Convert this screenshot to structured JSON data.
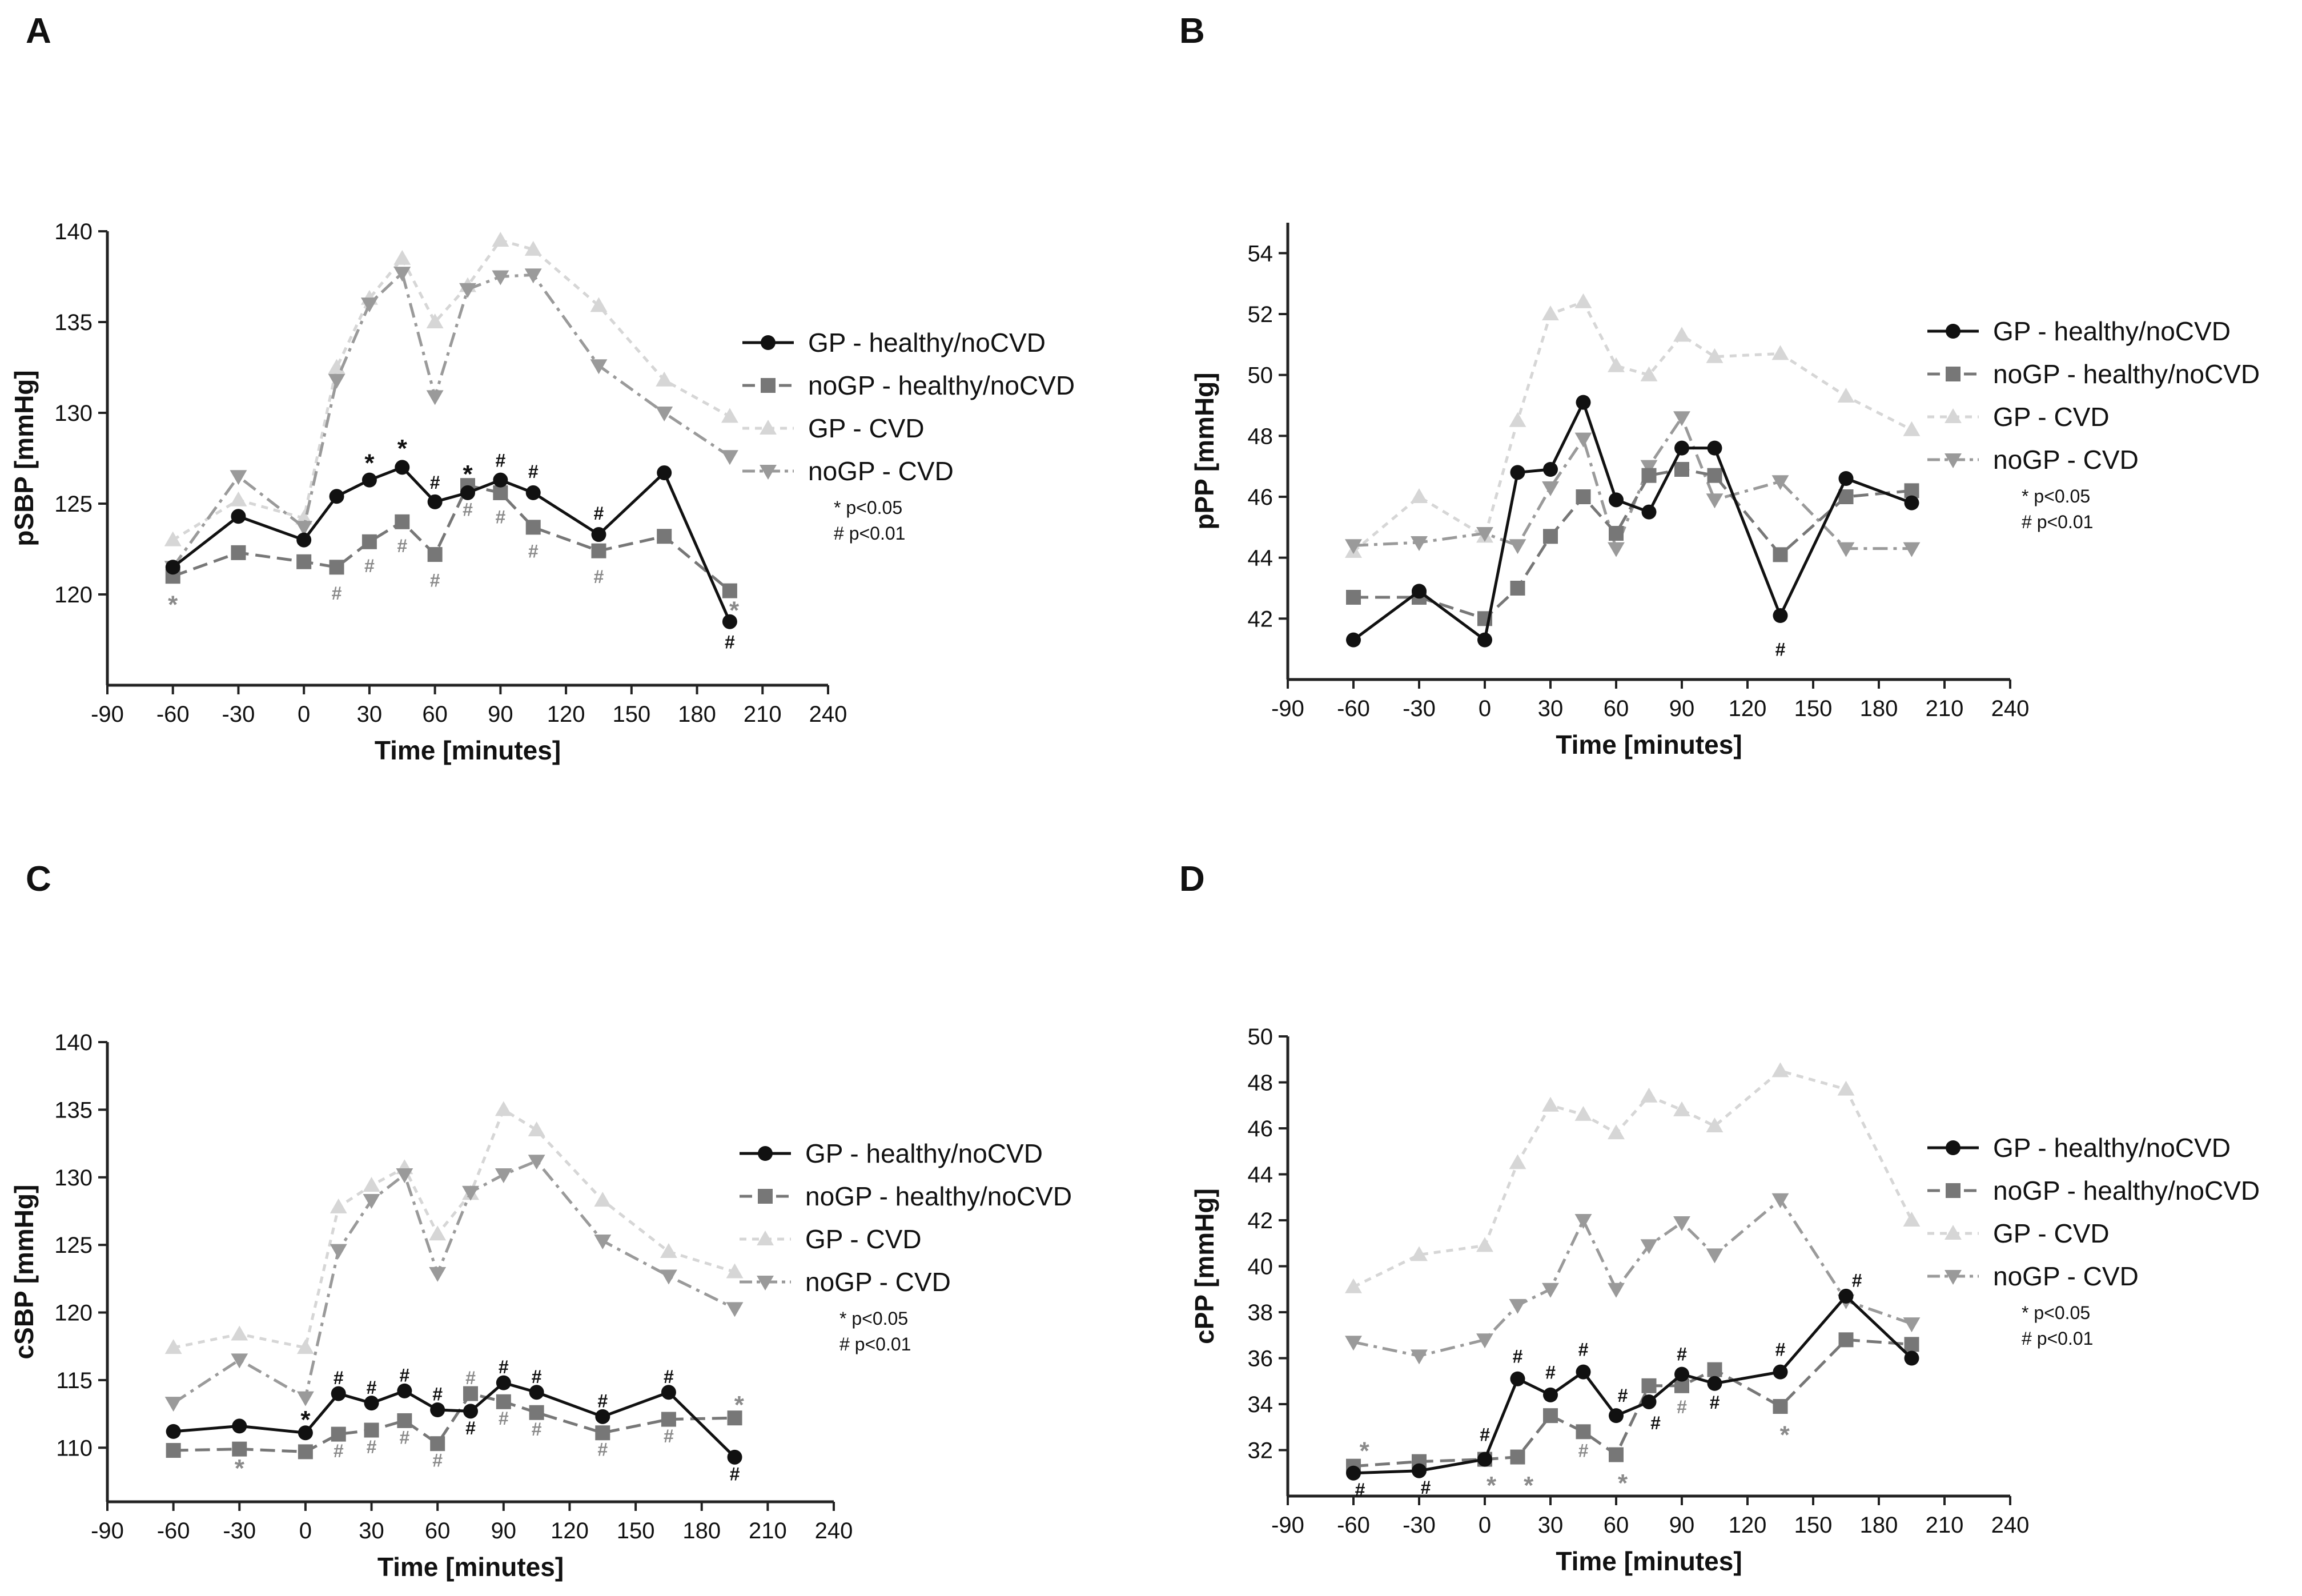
{
  "figure": {
    "x_axis_label": "Time [minutes]",
    "x_ticks": [
      -90,
      -60,
      -30,
      0,
      30,
      60,
      90,
      120,
      150,
      180,
      210,
      240
    ],
    "x_range": [
      -90,
      240
    ],
    "legend_labels": [
      "GP - healthy/noCVD",
      "noGP - healthy/noCVD",
      "GP - CVD",
      "noGP - CVD"
    ],
    "significance_notes": [
      "* p<0.05",
      "# p<0.01"
    ],
    "series_colors": {
      "gp_healthy": "#111111",
      "nogp_healthy": "#777777",
      "gp_cvd": "#d6d6d6",
      "nogp_cvd": "#9a9a9a"
    }
  },
  "chart_data": [
    {
      "panel": "A",
      "type": "line",
      "ylabel": "pSBP [mmHg]",
      "xlabel": "Time [minutes]",
      "ylim": [
        115,
        140
      ],
      "yticks": [
        120,
        125,
        130,
        135,
        140
      ],
      "series": [
        {
          "name": "GP - healthy/noCVD",
          "x": [
            -60,
            -30,
            0,
            15,
            30,
            45,
            60,
            75,
            90,
            105,
            135,
            165,
            195
          ],
          "values": [
            121.5,
            124.3,
            123.0,
            125.4,
            126.3,
            127.0,
            125.1,
            125.6,
            126.3,
            125.6,
            123.3,
            126.7,
            118.5
          ]
        },
        {
          "name": "noGP - healthy/noCVD",
          "x": [
            -60,
            -30,
            0,
            15,
            30,
            45,
            60,
            75,
            90,
            105,
            135,
            165,
            195
          ],
          "values": [
            121.0,
            122.3,
            121.8,
            121.5,
            122.9,
            124.0,
            122.2,
            126.0,
            125.6,
            123.7,
            122.4,
            123.2,
            120.2
          ]
        },
        {
          "name": "GP - CVD",
          "x": [
            -60,
            -30,
            0,
            15,
            30,
            45,
            60,
            75,
            90,
            105,
            135,
            165,
            195
          ],
          "values": [
            123.0,
            125.2,
            124.2,
            132.5,
            136.3,
            138.5,
            135.0,
            137.0,
            139.5,
            139.0,
            135.9,
            131.8,
            129.8
          ]
        },
        {
          "name": "noGP - CVD",
          "x": [
            -60,
            -30,
            0,
            15,
            30,
            45,
            60,
            75,
            90,
            105,
            135,
            165,
            195
          ],
          "values": [
            121.5,
            126.5,
            123.7,
            131.8,
            136.0,
            137.7,
            130.9,
            136.8,
            137.5,
            137.6,
            132.6,
            130.0,
            127.6
          ]
        }
      ],
      "annotations": [
        {
          "text": "*",
          "x": 30,
          "y": 127.4,
          "tone": "dark"
        },
        {
          "text": "*",
          "x": 45,
          "y": 128.2,
          "tone": "dark"
        },
        {
          "text": "#",
          "x": 60,
          "y": 126.2,
          "tone": "dark"
        },
        {
          "text": "*",
          "x": 75,
          "y": 126.8,
          "tone": "dark"
        },
        {
          "text": "#",
          "x": 90,
          "y": 127.4,
          "tone": "dark"
        },
        {
          "text": "#",
          "x": 105,
          "y": 126.8,
          "tone": "dark"
        },
        {
          "text": "#",
          "x": 135,
          "y": 124.5,
          "tone": "dark"
        },
        {
          "text": "#",
          "x": 195,
          "y": 117.4,
          "tone": "dark"
        },
        {
          "text": "*",
          "x": -60,
          "y": 119.6,
          "tone": "light"
        },
        {
          "text": "#",
          "x": 15,
          "y": 120.1,
          "tone": "light"
        },
        {
          "text": "#",
          "x": 30,
          "y": 121.6,
          "tone": "light"
        },
        {
          "text": "#",
          "x": 45,
          "y": 122.7,
          "tone": "light"
        },
        {
          "text": "#",
          "x": 60,
          "y": 120.8,
          "tone": "light"
        },
        {
          "text": "#",
          "x": 75,
          "y": 124.7,
          "tone": "light"
        },
        {
          "text": "#",
          "x": 90,
          "y": 124.3,
          "tone": "light"
        },
        {
          "text": "#",
          "x": 105,
          "y": 122.4,
          "tone": "light"
        },
        {
          "text": "#",
          "x": 135,
          "y": 121.0,
          "tone": "light"
        },
        {
          "text": "*",
          "x": 197,
          "y": 119.3,
          "tone": "light"
        }
      ]
    },
    {
      "panel": "B",
      "type": "line",
      "ylabel": "pPP [mmHg]",
      "xlabel": "Time [minutes]",
      "ylim": [
        40,
        55
      ],
      "yticks": [
        42,
        44,
        46,
        48,
        50,
        52,
        54
      ],
      "series": [
        {
          "name": "GP - healthy/noCVD",
          "x": [
            -60,
            -30,
            0,
            15,
            30,
            45,
            60,
            75,
            90,
            105,
            135,
            165,
            195
          ],
          "values": [
            41.3,
            42.9,
            41.3,
            46.8,
            46.9,
            49.1,
            45.9,
            45.5,
            47.6,
            47.6,
            42.1,
            46.6,
            45.8
          ]
        },
        {
          "name": "noGP - healthy/noCVD",
          "x": [
            -60,
            -30,
            0,
            15,
            30,
            45,
            60,
            75,
            90,
            105,
            135,
            165,
            195
          ],
          "values": [
            42.7,
            42.7,
            42.0,
            43.0,
            44.7,
            46.0,
            44.8,
            46.7,
            46.9,
            46.7,
            44.1,
            46.0,
            46.2
          ]
        },
        {
          "name": "GP - CVD",
          "x": [
            -60,
            -30,
            0,
            15,
            30,
            45,
            60,
            75,
            90,
            105,
            135,
            165,
            195
          ],
          "values": [
            44.2,
            46.0,
            44.7,
            48.5,
            52.0,
            52.4,
            50.3,
            50.0,
            51.3,
            50.6,
            50.7,
            49.3,
            48.2
          ]
        },
        {
          "name": "noGP - CVD",
          "x": [
            -60,
            -30,
            0,
            15,
            30,
            45,
            60,
            75,
            90,
            105,
            135,
            165,
            195
          ],
          "values": [
            44.4,
            44.5,
            44.8,
            44.4,
            46.3,
            47.9,
            44.3,
            47.0,
            48.6,
            45.9,
            46.5,
            44.3,
            44.3
          ]
        }
      ],
      "annotations": [
        {
          "text": "#",
          "x": 135,
          "y": 41.0,
          "tone": "dark"
        }
      ]
    },
    {
      "panel": "C",
      "type": "line",
      "ylabel": "cSBP [mmHg]",
      "xlabel": "Time [minutes]",
      "ylim": [
        106,
        140
      ],
      "yticks": [
        110,
        115,
        120,
        125,
        130,
        135,
        140
      ],
      "series": [
        {
          "name": "GP - healthy/noCVD",
          "x": [
            -60,
            -30,
            0,
            15,
            30,
            45,
            60,
            75,
            90,
            105,
            135,
            165,
            195
          ],
          "values": [
            111.2,
            111.6,
            111.1,
            114.0,
            113.3,
            114.2,
            112.8,
            112.7,
            114.8,
            114.1,
            112.3,
            114.1,
            109.3
          ]
        },
        {
          "name": "noGP - healthy/noCVD",
          "x": [
            -60,
            -30,
            0,
            15,
            30,
            45,
            60,
            75,
            90,
            105,
            135,
            165,
            195
          ],
          "values": [
            109.8,
            109.9,
            109.7,
            111.0,
            111.3,
            112.0,
            110.3,
            114.0,
            113.4,
            112.6,
            111.1,
            112.1,
            112.2
          ]
        },
        {
          "name": "GP - CVD",
          "x": [
            -60,
            -30,
            0,
            15,
            30,
            45,
            60,
            75,
            90,
            105,
            135,
            165,
            195
          ],
          "values": [
            117.4,
            118.4,
            117.4,
            127.8,
            129.4,
            130.7,
            125.8,
            128.8,
            135.0,
            133.5,
            128.3,
            124.5,
            123.0
          ]
        },
        {
          "name": "noGP - CVD",
          "x": [
            -60,
            -30,
            0,
            15,
            30,
            45,
            60,
            75,
            90,
            105,
            135,
            165,
            195
          ],
          "values": [
            113.3,
            116.5,
            113.7,
            124.6,
            128.3,
            130.2,
            122.9,
            128.9,
            130.2,
            131.2,
            125.3,
            122.7,
            120.3
          ]
        }
      ],
      "annotations": [
        {
          "text": "*",
          "x": 0,
          "y": 112.3,
          "tone": "dark"
        },
        {
          "text": "#",
          "x": 15,
          "y": 115.2,
          "tone": "dark"
        },
        {
          "text": "#",
          "x": 30,
          "y": 114.5,
          "tone": "dark"
        },
        {
          "text": "#",
          "x": 45,
          "y": 115.4,
          "tone": "dark"
        },
        {
          "text": "#",
          "x": 60,
          "y": 114.0,
          "tone": "dark"
        },
        {
          "text": "#",
          "x": 75,
          "y": 111.5,
          "tone": "dark"
        },
        {
          "text": "#",
          "x": 90,
          "y": 116.0,
          "tone": "dark"
        },
        {
          "text": "#",
          "x": 105,
          "y": 115.3,
          "tone": "dark"
        },
        {
          "text": "#",
          "x": 135,
          "y": 113.5,
          "tone": "dark"
        },
        {
          "text": "#",
          "x": 165,
          "y": 115.3,
          "tone": "dark"
        },
        {
          "text": "#",
          "x": 195,
          "y": 108.1,
          "tone": "dark"
        },
        {
          "text": "*",
          "x": -30,
          "y": 108.7,
          "tone": "light"
        },
        {
          "text": "#",
          "x": 15,
          "y": 109.8,
          "tone": "light"
        },
        {
          "text": "#",
          "x": 30,
          "y": 110.1,
          "tone": "light"
        },
        {
          "text": "#",
          "x": 45,
          "y": 110.8,
          "tone": "light"
        },
        {
          "text": "#",
          "x": 60,
          "y": 109.1,
          "tone": "light"
        },
        {
          "text": "#",
          "x": 75,
          "y": 115.2,
          "tone": "light"
        },
        {
          "text": "#",
          "x": 90,
          "y": 112.2,
          "tone": "light"
        },
        {
          "text": "#",
          "x": 105,
          "y": 111.4,
          "tone": "light"
        },
        {
          "text": "#",
          "x": 135,
          "y": 109.9,
          "tone": "light"
        },
        {
          "text": "#",
          "x": 165,
          "y": 110.9,
          "tone": "light"
        },
        {
          "text": "*",
          "x": 197,
          "y": 113.4,
          "tone": "light"
        }
      ]
    },
    {
      "panel": "D",
      "type": "line",
      "ylabel": "cPP [mmHg]",
      "xlabel": "Time [minutes]",
      "ylim": [
        30,
        50
      ],
      "yticks": [
        32,
        34,
        36,
        38,
        40,
        42,
        44,
        46,
        48,
        50
      ],
      "series": [
        {
          "name": "GP - healthy/noCVD",
          "x": [
            -60,
            -30,
            0,
            15,
            30,
            45,
            60,
            75,
            90,
            105,
            135,
            165,
            195
          ],
          "values": [
            31.0,
            31.1,
            31.6,
            35.1,
            34.4,
            35.4,
            33.5,
            34.1,
            35.3,
            34.9,
            35.4,
            38.7,
            36.0
          ]
        },
        {
          "name": "noGP - healthy/noCVD",
          "x": [
            -60,
            -30,
            0,
            15,
            30,
            45,
            60,
            75,
            90,
            105,
            135,
            165,
            195
          ],
          "values": [
            31.3,
            31.5,
            31.6,
            31.7,
            33.5,
            32.8,
            31.8,
            34.8,
            34.8,
            35.5,
            33.9,
            36.8,
            36.6
          ]
        },
        {
          "name": "GP - CVD",
          "x": [
            -60,
            -30,
            0,
            15,
            30,
            45,
            60,
            75,
            90,
            105,
            135,
            165,
            195
          ],
          "values": [
            39.1,
            40.5,
            40.9,
            44.5,
            47.0,
            46.6,
            45.8,
            47.4,
            46.8,
            46.1,
            48.5,
            47.7,
            42.0
          ]
        },
        {
          "name": "noGP - CVD",
          "x": [
            -60,
            -30,
            0,
            15,
            30,
            45,
            60,
            75,
            90,
            105,
            135,
            165,
            195
          ],
          "values": [
            36.7,
            36.1,
            36.8,
            38.3,
            39.0,
            42.0,
            39.0,
            40.9,
            41.9,
            40.5,
            42.9,
            38.5,
            37.5
          ]
        }
      ],
      "annotations": [
        {
          "text": "#",
          "x": -57,
          "y": 30.3,
          "tone": "dark"
        },
        {
          "text": "#",
          "x": -27,
          "y": 30.4,
          "tone": "dark"
        },
        {
          "text": "#",
          "x": 0,
          "y": 32.7,
          "tone": "dark"
        },
        {
          "text": "#",
          "x": 15,
          "y": 36.1,
          "tone": "dark"
        },
        {
          "text": "#",
          "x": 30,
          "y": 35.4,
          "tone": "dark"
        },
        {
          "text": "#",
          "x": 45,
          "y": 36.4,
          "tone": "dark"
        },
        {
          "text": "#",
          "x": 63,
          "y": 34.4,
          "tone": "dark"
        },
        {
          "text": "#",
          "x": 78,
          "y": 33.2,
          "tone": "dark"
        },
        {
          "text": "#",
          "x": 90,
          "y": 36.2,
          "tone": "dark"
        },
        {
          "text": "#",
          "x": 105,
          "y": 34.1,
          "tone": "dark"
        },
        {
          "text": "#",
          "x": 135,
          "y": 36.4,
          "tone": "dark"
        },
        {
          "text": "#",
          "x": 170,
          "y": 39.4,
          "tone": "dark"
        },
        {
          "text": "*",
          "x": -55,
          "y": 32.1,
          "tone": "light"
        },
        {
          "text": "*",
          "x": 3,
          "y": 30.6,
          "tone": "light"
        },
        {
          "text": "*",
          "x": 20,
          "y": 30.6,
          "tone": "light"
        },
        {
          "text": "#",
          "x": 45,
          "y": 32.0,
          "tone": "light"
        },
        {
          "text": "*",
          "x": 63,
          "y": 30.7,
          "tone": "light"
        },
        {
          "text": "#",
          "x": 90,
          "y": 33.9,
          "tone": "light"
        },
        {
          "text": "*",
          "x": 137,
          "y": 32.8,
          "tone": "light"
        }
      ]
    }
  ]
}
